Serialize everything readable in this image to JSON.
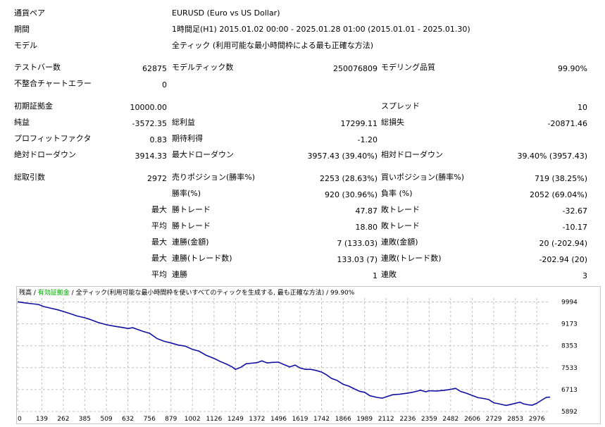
{
  "report": {
    "symbol_label": "通貨ペア",
    "symbol_value": "EURUSD (Euro vs US Dollar)",
    "period_label": "期間",
    "period_value": "1時間足(H1) 2015.01.02 00:00 - 2025.01.28 01:00 (2015.01.01 - 2025.01.30)",
    "model_label": "モデル",
    "model_value": "全ティック (利用可能な最小時間枠による最も正確な方法)",
    "bars_label": "テストバー数",
    "bars_value": "62875",
    "ticks_label": "モデルティック数",
    "ticks_value": "250076809",
    "quality_label": "モデリング品質",
    "quality_value": "99.90%",
    "mismatch_label": "不整合チャートエラー",
    "mismatch_value": "0",
    "deposit_label": "初期証拠金",
    "deposit_value": "10000.00",
    "spread_label": "スプレッド",
    "spread_value": "10",
    "net_label": "純益",
    "net_value": "-3572.35",
    "gross_profit_label": "総利益",
    "gross_profit_value": "17299.11",
    "gross_loss_label": "総損失",
    "gross_loss_value": "-20871.46",
    "pf_label": "プロフィットファクタ",
    "pf_value": "0.83",
    "expected_label": "期待利得",
    "expected_value": "-1.20",
    "abs_dd_label": "絶対ドローダウン",
    "abs_dd_value": "3914.33",
    "max_dd_label": "最大ドローダウン",
    "max_dd_value": "3957.43 (39.40%)",
    "rel_dd_label": "相対ドローダウン",
    "rel_dd_value": "39.40% (3957.43)",
    "total_trades_label": "総取引数",
    "total_trades_value": "2972",
    "short_label": "売りポジション(勝率%)",
    "short_value": "2253 (28.63%)",
    "long_label": "買いポジション(勝率%)",
    "long_value": "719 (38.25%)",
    "win_pct_label": "勝率(%)",
    "win_pct_value": "920 (30.96%)",
    "loss_pct_label": "負率 (%)",
    "loss_pct_value": "2052 (69.04%)",
    "max_word": "最大",
    "avg_word": "平均",
    "largest_win_label": "勝トレード",
    "largest_win_value": "47.87",
    "largest_loss_label": "敗トレード",
    "largest_loss_value": "-32.67",
    "avg_win_label": "勝トレード",
    "avg_win_value": "18.80",
    "avg_loss_label": "敗トレード",
    "avg_loss_value": "-10.17",
    "consec_wins_amt_label": "連勝(金額)",
    "consec_wins_amt_value": "7 (133.03)",
    "consec_losses_amt_label": "連敗(金額)",
    "consec_losses_amt_value": "20 (-202.94)",
    "consec_profit_label": "連勝(トレード数)",
    "consec_profit_value": "133.03 (7)",
    "consec_loss_label": "連敗(トレード数)",
    "consec_loss_value": "-202.94 (20)",
    "avg_consec_wins_label": "連勝",
    "avg_consec_wins_value": "1",
    "avg_consec_losses_label": "連敗",
    "avg_consec_losses_value": "3"
  },
  "chart_legend": {
    "balance": "残高",
    "sep1": " / ",
    "equity": "有効証拠金",
    "sep2": " / ",
    "model": "全ティック(利用可能な最小時間枠を使いすべてのティックを生成する, 最も正確な方法)",
    "sep3": " / ",
    "quality": "99.90%"
  },
  "colors": {
    "balance_line": "#1010a0",
    "equity_legend": "#00a000",
    "grid": "#c0c0c0"
  },
  "chart_data": {
    "type": "line",
    "xlim": [
      0,
      3052
    ],
    "ylim": [
      5892,
      10140
    ],
    "x_ticks": [
      0,
      139,
      262,
      385,
      509,
      632,
      756,
      879,
      1002,
      1126,
      1249,
      1372,
      1496,
      1619,
      1742,
      1866,
      1989,
      2112,
      2236,
      2359,
      2482,
      2606,
      2729,
      2853,
      2976
    ],
    "y_ticks": [
      9994,
      9173,
      8353,
      7533,
      6713,
      5892
    ],
    "series": [
      {
        "values": [
          [
            0,
            10000
          ],
          [
            40,
            9960
          ],
          [
            80,
            9930
          ],
          [
            120,
            9900
          ],
          [
            150,
            9820
          ],
          [
            190,
            9760
          ],
          [
            230,
            9700
          ],
          [
            262,
            9640
          ],
          [
            300,
            9560
          ],
          [
            340,
            9470
          ],
          [
            385,
            9400
          ],
          [
            420,
            9330
          ],
          [
            460,
            9230
          ],
          [
            509,
            9140
          ],
          [
            560,
            9080
          ],
          [
            600,
            9040
          ],
          [
            632,
            9000
          ],
          [
            660,
            9030
          ],
          [
            690,
            8960
          ],
          [
            720,
            8890
          ],
          [
            756,
            8820
          ],
          [
            800,
            8620
          ],
          [
            840,
            8520
          ],
          [
            879,
            8460
          ],
          [
            920,
            8380
          ],
          [
            960,
            8340
          ],
          [
            1002,
            8220
          ],
          [
            1040,
            8150
          ],
          [
            1080,
            8000
          ],
          [
            1126,
            7880
          ],
          [
            1160,
            7770
          ],
          [
            1200,
            7660
          ],
          [
            1230,
            7560
          ],
          [
            1249,
            7470
          ],
          [
            1280,
            7550
          ],
          [
            1310,
            7680
          ],
          [
            1340,
            7700
          ],
          [
            1372,
            7720
          ],
          [
            1400,
            7790
          ],
          [
            1430,
            7710
          ],
          [
            1460,
            7730
          ],
          [
            1496,
            7740
          ],
          [
            1530,
            7640
          ],
          [
            1560,
            7560
          ],
          [
            1590,
            7630
          ],
          [
            1619,
            7520
          ],
          [
            1650,
            7470
          ],
          [
            1680,
            7470
          ],
          [
            1710,
            7430
          ],
          [
            1742,
            7370
          ],
          [
            1770,
            7270
          ],
          [
            1800,
            7130
          ],
          [
            1830,
            7060
          ],
          [
            1866,
            6910
          ],
          [
            1900,
            6840
          ],
          [
            1930,
            6740
          ],
          [
            1960,
            6650
          ],
          [
            1989,
            6610
          ],
          [
            2020,
            6480
          ],
          [
            2060,
            6420
          ],
          [
            2090,
            6390
          ],
          [
            2112,
            6440
          ],
          [
            2150,
            6520
          ],
          [
            2190,
            6540
          ],
          [
            2236,
            6580
          ],
          [
            2270,
            6620
          ],
          [
            2310,
            6690
          ],
          [
            2340,
            6630
          ],
          [
            2359,
            6670
          ],
          [
            2400,
            6660
          ],
          [
            2440,
            6680
          ],
          [
            2482,
            6720
          ],
          [
            2510,
            6760
          ],
          [
            2540,
            6640
          ],
          [
            2570,
            6580
          ],
          [
            2606,
            6490
          ],
          [
            2640,
            6410
          ],
          [
            2670,
            6380
          ],
          [
            2700,
            6340
          ],
          [
            2729,
            6220
          ],
          [
            2760,
            6180
          ],
          [
            2800,
            6120
          ],
          [
            2830,
            6160
          ],
          [
            2853,
            6200
          ],
          [
            2880,
            6240
          ],
          [
            2900,
            6180
          ],
          [
            2930,
            6140
          ],
          [
            2950,
            6130
          ],
          [
            2976,
            6200
          ],
          [
            3000,
            6300
          ],
          [
            3030,
            6420
          ],
          [
            3052,
            6430
          ]
        ]
      }
    ]
  }
}
